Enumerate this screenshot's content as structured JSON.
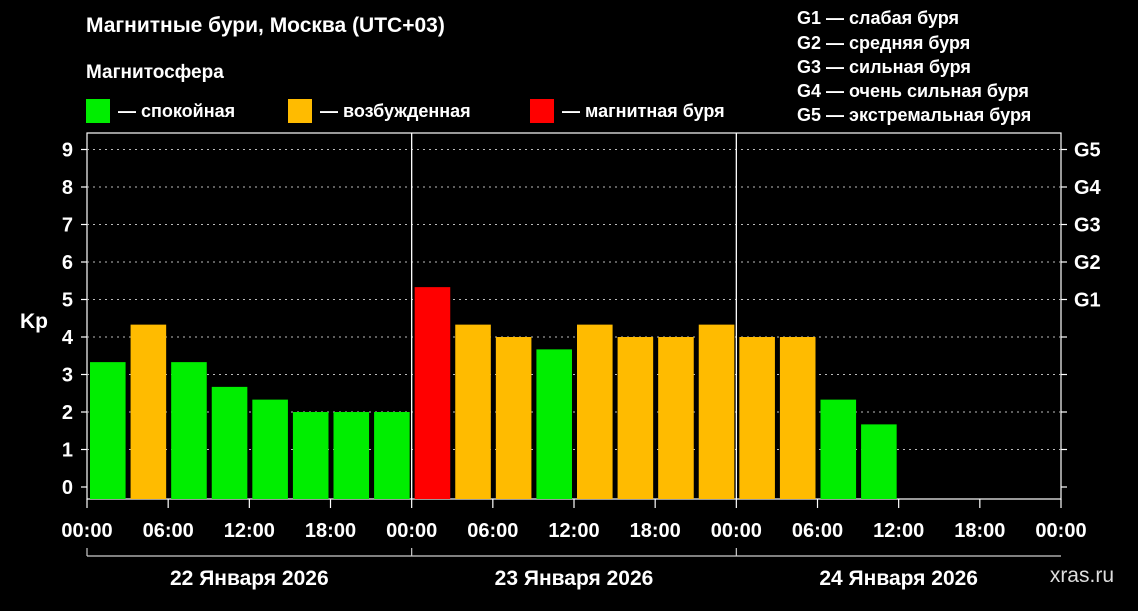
{
  "title": "Магнитные бури, Москва (UTC+03)",
  "magnetosphere": {
    "heading": "Магнитосфера",
    "legend": [
      {
        "label": "— спокойная",
        "color": "#00ee00"
      },
      {
        "label": "— возбужденная",
        "color": "#ffbb00"
      },
      {
        "label": "— магнитная буря",
        "color": "#ff0000"
      }
    ]
  },
  "storm_scale": [
    "G1 — слабая буря",
    "G2 — средняя буря",
    "G3 — сильная буря",
    "G4 — очень сильная буря",
    "G5 — экстремальная буря"
  ],
  "watermark": "xras.ru",
  "chart_data": {
    "type": "bar",
    "ylabel": "Kp",
    "ylim": [
      0,
      9
    ],
    "yticks": [
      "0",
      "1",
      "2",
      "3",
      "4",
      "5",
      "6",
      "7",
      "8",
      "9"
    ],
    "right_ticks": [
      {
        "value": 5,
        "label": "G1"
      },
      {
        "value": 6,
        "label": "G2"
      },
      {
        "value": 7,
        "label": "G3"
      },
      {
        "value": 8,
        "label": "G4"
      },
      {
        "value": 9,
        "label": "G5"
      }
    ],
    "x_tick_labels": [
      "00:00",
      "06:00",
      "12:00",
      "18:00",
      "00:00",
      "06:00",
      "12:00",
      "18:00",
      "00:00",
      "06:00",
      "12:00",
      "18:00",
      "00:00"
    ],
    "days": [
      "22 Января 2026",
      "23 Января 2026",
      "24 Января 2026"
    ],
    "colors": {
      "quiet": "#00ee00",
      "active": "#ffbb00",
      "storm": "#ff0000"
    },
    "bars": [
      {
        "value": 3.33,
        "level": "quiet"
      },
      {
        "value": 4.33,
        "level": "active"
      },
      {
        "value": 3.33,
        "level": "quiet"
      },
      {
        "value": 2.67,
        "level": "quiet"
      },
      {
        "value": 2.33,
        "level": "quiet"
      },
      {
        "value": 2.0,
        "level": "quiet"
      },
      {
        "value": 2.0,
        "level": "quiet"
      },
      {
        "value": 2.0,
        "level": "quiet"
      },
      {
        "value": 5.33,
        "level": "storm"
      },
      {
        "value": 4.33,
        "level": "active"
      },
      {
        "value": 4.0,
        "level": "active"
      },
      {
        "value": 3.67,
        "level": "quiet"
      },
      {
        "value": 4.33,
        "level": "active"
      },
      {
        "value": 4.0,
        "level": "active"
      },
      {
        "value": 4.0,
        "level": "active"
      },
      {
        "value": 4.33,
        "level": "active"
      },
      {
        "value": 4.0,
        "level": "active"
      },
      {
        "value": 4.0,
        "level": "active"
      },
      {
        "value": 2.33,
        "level": "quiet"
      },
      {
        "value": 1.67,
        "level": "quiet"
      }
    ]
  }
}
